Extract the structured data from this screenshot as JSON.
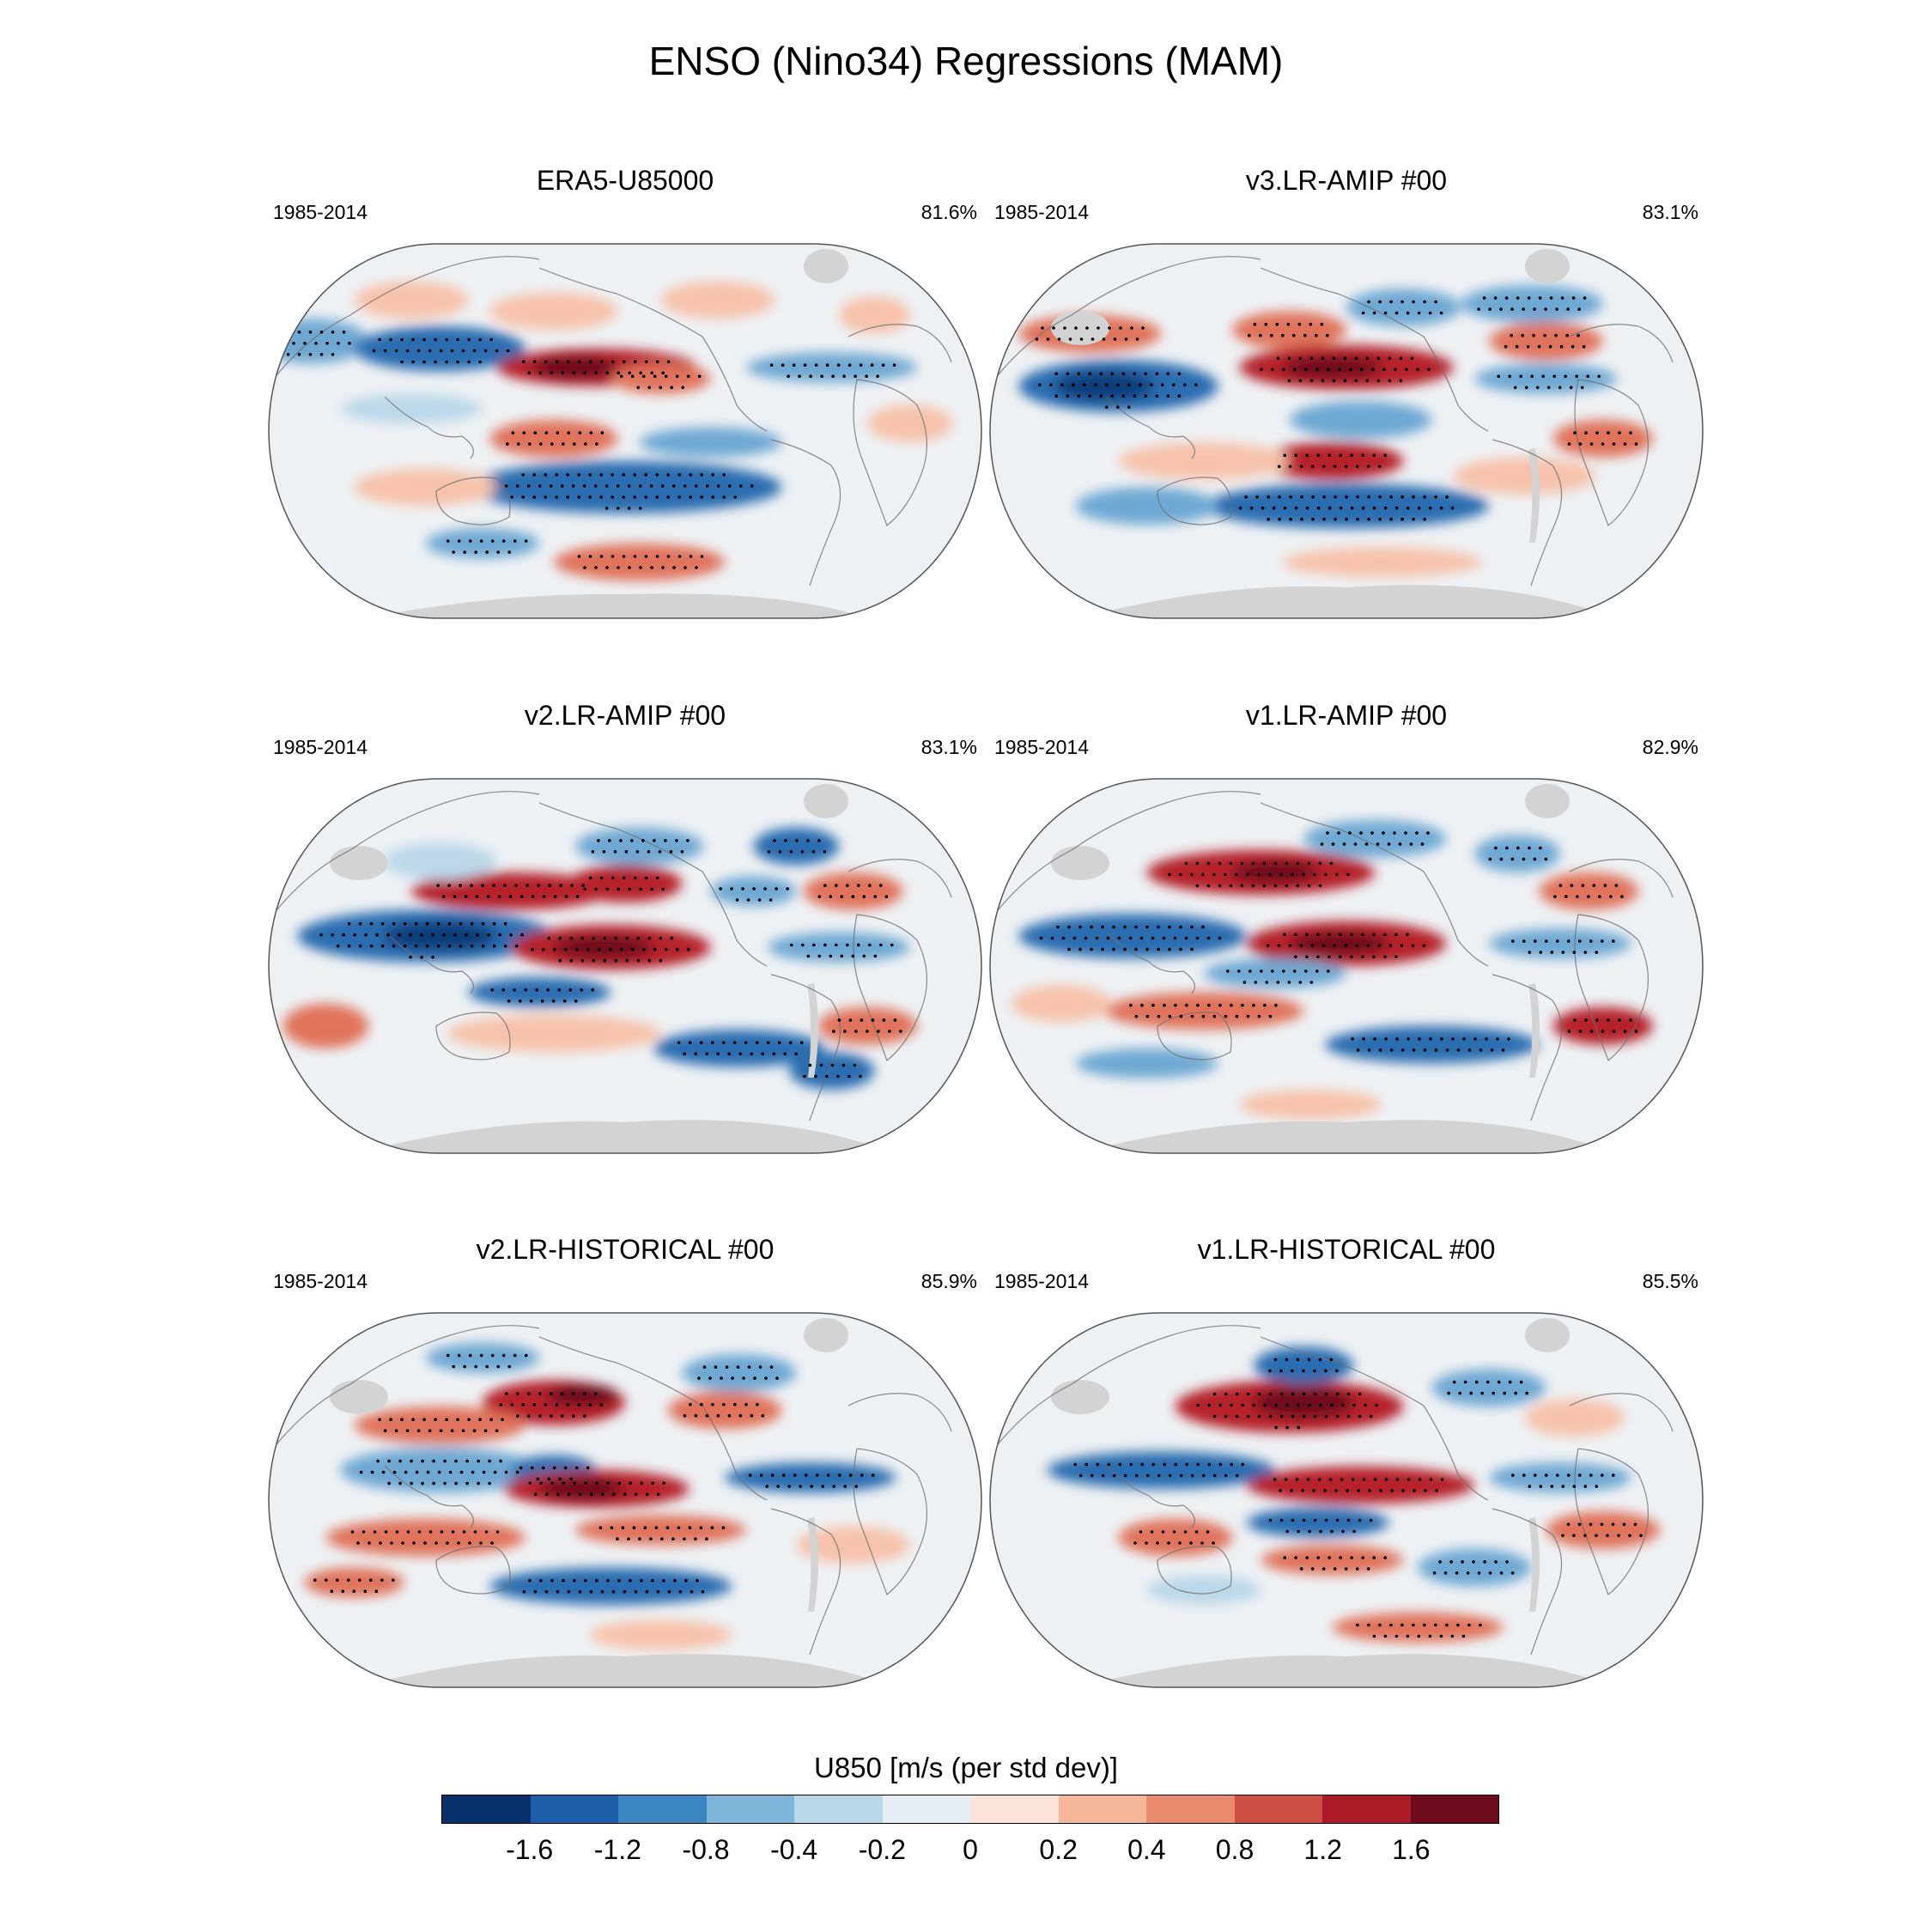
{
  "figure": {
    "title": "ENSO (Nino34) Regressions (MAM)"
  },
  "panels": [
    {
      "title": "ERA5-U85000",
      "period": "1985-2014",
      "percent": "81.6%"
    },
    {
      "title": "v3.LR-AMIP  #00",
      "period": "1985-2014",
      "percent": "83.1%"
    },
    {
      "title": "v2.LR-AMIP  #00",
      "period": "1985-2014",
      "percent": "83.1%"
    },
    {
      "title": "v1.LR-AMIP  #00",
      "period": "1985-2014",
      "percent": "82.9%"
    },
    {
      "title": "v2.LR-HISTORICAL  #00",
      "period": "1985-2014",
      "percent": "85.9%"
    },
    {
      "title": "v1.LR-HISTORICAL  #00",
      "period": "1985-2014",
      "percent": "85.5%"
    }
  ],
  "colorbar": {
    "title": "U850 [m/s (per std dev)]",
    "colors": [
      "#08306b",
      "#1c5fa8",
      "#3a86c0",
      "#7db6d9",
      "#b8d8ea",
      "#e5eef4",
      "#fbe3da",
      "#f5b69b",
      "#e88a6c",
      "#cf4e44",
      "#aa1b27",
      "#6d0a1c"
    ],
    "labels": [
      "-1.6",
      "-1.2",
      "-0.8",
      "-0.4",
      "-0.2",
      "0",
      "0.2",
      "0.4",
      "0.8",
      "1.2",
      "1.6"
    ]
  },
  "palette": {
    "ocean_neutral": "#eef1f4",
    "land_gray": "#d3d3d3",
    "coast": "#6e6e6e",
    "blue_strong": "#2a6db0",
    "blue_mid": "#6ea8d3",
    "blue_light": "#bcd8ea",
    "red_light": "#f7c2ab",
    "red_mid": "#e0735b",
    "red_strong": "#b5202c",
    "red_core": "#6d0a1c",
    "blue_core": "#0b3d7a"
  }
}
